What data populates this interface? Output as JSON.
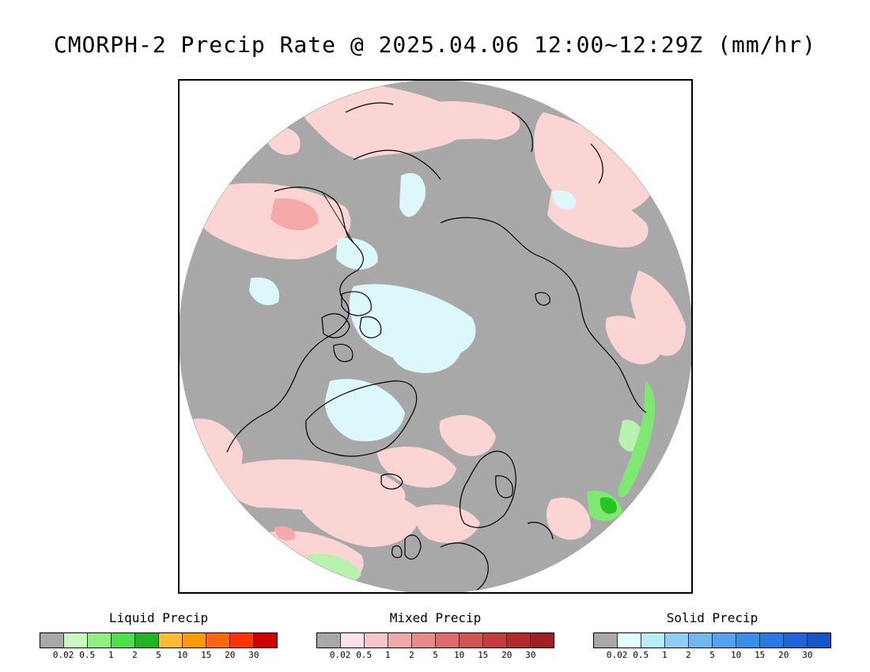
{
  "title": "CMORPH-2 Precip Rate @ 2025.04.06 12:00~12:29Z (mm/hr)",
  "map": {
    "projection": "north-polar-stereographic",
    "colors": {
      "ocean": "#a8a8a8",
      "outside": "#ffffff",
      "coast": "#000000",
      "mixed_light": "#fbd4d4",
      "mixed_mid": "#f5a8a8",
      "solid_light": "#dcf8fb",
      "liquid_light": "#b7f2ae",
      "liquid_mid": "#7ee873",
      "liquid_strong": "#24c524"
    }
  },
  "legends": [
    {
      "title": "Liquid Precip",
      "colors": [
        "#a8a8a8",
        "#c8fac0",
        "#8ef080",
        "#4ee04a",
        "#22b322",
        "#ffbb33",
        "#ff9900",
        "#ff6611",
        "#ff3300",
        "#cc0000"
      ],
      "ticks": [
        "0.02",
        "0.5",
        "1",
        "2",
        "5",
        "10",
        "15",
        "20",
        "30"
      ]
    },
    {
      "title": "Mixed Precip",
      "colors": [
        "#a8a8a8",
        "#ffe2e8",
        "#f8c6c6",
        "#f0a8a8",
        "#e88a8a",
        "#dd6b6b",
        "#d05454",
        "#c43c3c",
        "#b22a2a",
        "#9e2020"
      ],
      "ticks": [
        "0.02",
        "0.5",
        "1",
        "2",
        "5",
        "10",
        "15",
        "20",
        "30"
      ]
    },
    {
      "title": "Solid Precip",
      "colors": [
        "#a8a8a8",
        "#e0ffff",
        "#b4eefa",
        "#8ccff5",
        "#6eb8f0",
        "#50a3ec",
        "#3a8de8",
        "#2a78e3",
        "#1e66d8",
        "#1456c8"
      ],
      "ticks": [
        "0.02",
        "0.5",
        "1",
        "2",
        "5",
        "10",
        "15",
        "20",
        "30"
      ]
    }
  ]
}
